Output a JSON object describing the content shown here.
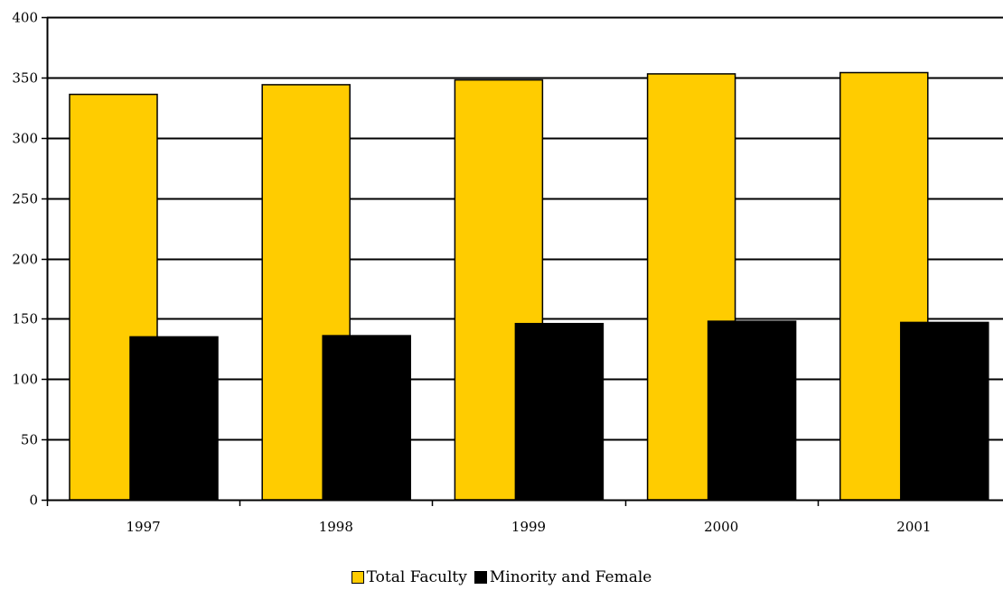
{
  "chart_data": {
    "type": "bar",
    "categories": [
      "1997",
      "1998",
      "1999",
      "2000",
      "2001"
    ],
    "series": [
      {
        "name": "Total Faculty",
        "values": [
          336,
          344,
          348,
          353,
          354
        ],
        "color": "#FFCC00"
      },
      {
        "name": "Minority and Female",
        "values": [
          135,
          136,
          146,
          148,
          147
        ],
        "color": "#000000"
      }
    ],
    "title": "",
    "xlabel": "",
    "ylabel": "",
    "ylim": [
      0,
      400
    ],
    "yticks": [
      0,
      50,
      100,
      150,
      200,
      250,
      300,
      350,
      400
    ],
    "grid": true,
    "legend_position": "bottom"
  }
}
